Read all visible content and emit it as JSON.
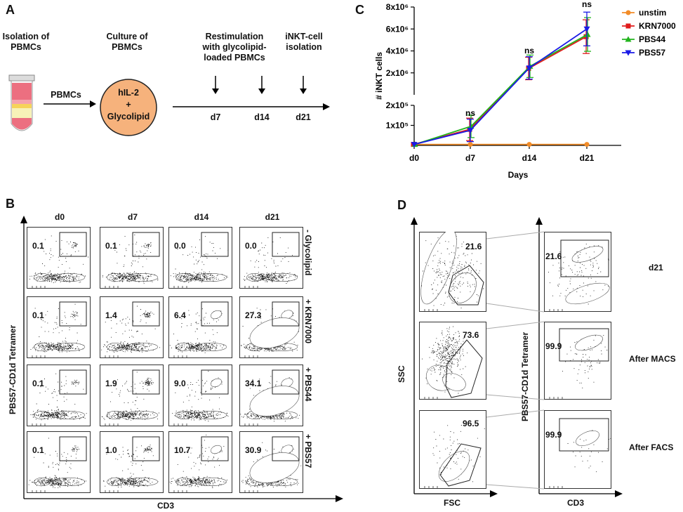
{
  "panel_a": {
    "letter": "A",
    "step1": "Isolation of PBMCs",
    "step2": "Culture of PBMCs",
    "step3": "Restimulation with glycolipid-loaded PBMCs",
    "step4": "iNKT-cell isolation",
    "arrow_label": "PBMCs",
    "circle_line1": "hIL-2",
    "circle_line2": "+",
    "circle_line3": "Glycolipid",
    "days": [
      "d7",
      "d14",
      "d21"
    ]
  },
  "panel_b": {
    "letter": "B",
    "y_title": "PBS57-CD1d Tetramer",
    "x_title": "CD3",
    "days": [
      "d0",
      "d7",
      "d14",
      "d21"
    ],
    "rows": [
      {
        "label": "- Glycolipid",
        "values": [
          "0.1",
          "0.1",
          "0.0",
          "0.0"
        ]
      },
      {
        "label": "+ KRN7000",
        "values": [
          "0.1",
          "1.4",
          "6.4",
          "27.3"
        ]
      },
      {
        "label": "+ PBS44",
        "values": [
          "0.1",
          "1.9",
          "9.0",
          "34.1"
        ]
      },
      {
        "label": "+ PBS57",
        "values": [
          "0.1",
          "1.0",
          "10.7",
          "30.9"
        ]
      }
    ]
  },
  "panel_c": {
    "letter": "C",
    "chart_data": {
      "type": "line",
      "ylabel": "# iNKT cells",
      "xlabel": "Days",
      "categories": [
        "d0",
        "d7",
        "d14",
        "d21"
      ],
      "y_tick_labels_upper": [
        "8x10⁶",
        "6x10⁶",
        "4x10⁶",
        "2x10⁶"
      ],
      "y_tick_labels_lower": [
        "2x10⁵",
        "1x10⁵"
      ],
      "upper_ylim": [
        0,
        8000000
      ],
      "lower_ylim": [
        0,
        200000
      ],
      "annotations": [
        "ns",
        "ns",
        "ns"
      ],
      "series": [
        {
          "name": "unstim",
          "color": "#f28c28",
          "marker": "circle",
          "values": [
            5000,
            5000,
            5000,
            5000
          ]
        },
        {
          "name": "KRN7000",
          "color": "#e01b1b",
          "marker": "square",
          "values": [
            5000,
            80000,
            2400000,
            5300000
          ]
        },
        {
          "name": "PBS44",
          "color": "#22b41e",
          "marker": "triangle",
          "values": [
            5000,
            95000,
            2600000,
            5500000
          ]
        },
        {
          "name": "PBS57",
          "color": "#1a1ae6",
          "marker": "triangle-down",
          "values": [
            5000,
            75000,
            2450000,
            6000000
          ]
        }
      ]
    }
  },
  "panel_d": {
    "letter": "D",
    "left_y": "SSC",
    "left_x": "FSC",
    "right_y": "PBS57-CD1d Tetramer",
    "right_x": "CD3",
    "rows": [
      {
        "fsc_gate": "21.6",
        "tet_gate": "21.6",
        "label": "d21"
      },
      {
        "fsc_gate": "73.6",
        "tet_gate": "99.9",
        "label": "After MACS"
      },
      {
        "fsc_gate": "96.5",
        "tet_gate": "99.9",
        "label": "After FACS"
      }
    ]
  }
}
